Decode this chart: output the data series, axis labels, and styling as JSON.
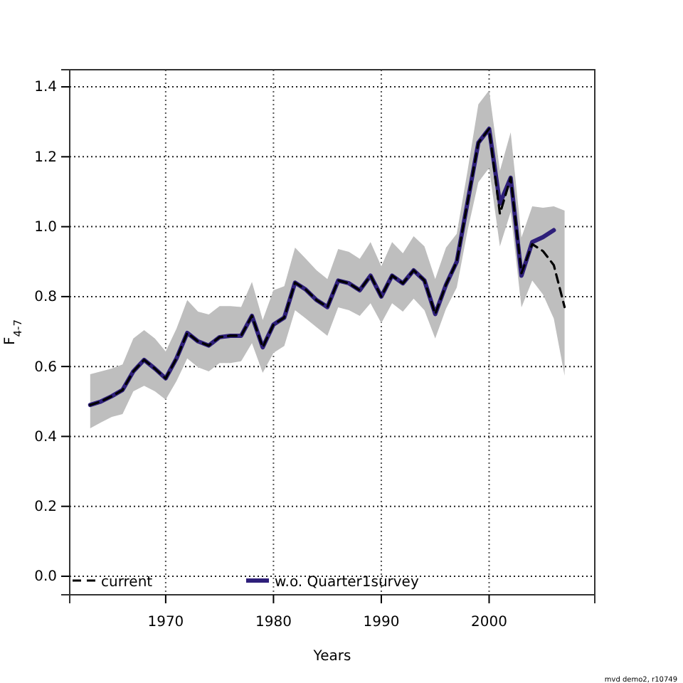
{
  "chart_data": {
    "type": "line",
    "xlabel": "Years",
    "ylabel": "F$_{4-7}$",
    "xlim": [
      1961.1,
      2009.8
    ],
    "ylim": [
      -0.053,
      1.449
    ],
    "xticks": [
      1970,
      1980,
      1990,
      2000
    ],
    "yticks": [
      {
        "value": 0,
        "label": "0.0"
      },
      {
        "value": 0.2,
        "label": "0.2"
      },
      {
        "value": 0.4,
        "label": "0.4"
      },
      {
        "value": 0.6,
        "label": "0.6"
      },
      {
        "value": 0.8,
        "label": "0.8"
      },
      {
        "value": 1.0,
        "label": "1.0"
      },
      {
        "value": 1.2,
        "label": "1.2"
      },
      {
        "value": 1.4,
        "label": "1.4"
      }
    ],
    "grid": true,
    "legend": "bottom",
    "series": [
      {
        "name": "current",
        "color": "#000000",
        "line_style": "dashed",
        "x": [
          1963,
          1964,
          1965,
          1966,
          1967,
          1968,
          1969,
          1970,
          1971,
          1972,
          1973,
          1974,
          1975,
          1976,
          1977,
          1978,
          1979,
          1980,
          1981,
          1982,
          1983,
          1984,
          1985,
          1986,
          1987,
          1988,
          1989,
          1990,
          1991,
          1992,
          1993,
          1994,
          1995,
          1996,
          1997,
          1998,
          1999,
          2000,
          2001,
          2002,
          2003,
          2004,
          2005,
          2006,
          2007
        ],
        "values": [
          0.49,
          0.5,
          0.515,
          0.533,
          0.586,
          0.619,
          0.594,
          0.566,
          0.623,
          0.696,
          0.672,
          0.66,
          0.684,
          0.688,
          0.688,
          0.745,
          0.655,
          0.72,
          0.74,
          0.84,
          0.82,
          0.79,
          0.77,
          0.846,
          0.838,
          0.818,
          0.86,
          0.8,
          0.86,
          0.838,
          0.875,
          0.846,
          0.75,
          0.834,
          0.9,
          1.07,
          1.24,
          1.28,
          1.037,
          1.14,
          0.867,
          0.95,
          0.93,
          0.89,
          0.77
        ],
        "lower": [
          0.423,
          0.44,
          0.456,
          0.464,
          0.529,
          0.545,
          0.529,
          0.505,
          0.558,
          0.623,
          0.598,
          0.586,
          0.61,
          0.61,
          0.615,
          0.667,
          0.582,
          0.639,
          0.659,
          0.761,
          0.737,
          0.712,
          0.688,
          0.769,
          0.761,
          0.745,
          0.781,
          0.724,
          0.781,
          0.757,
          0.794,
          0.761,
          0.68,
          0.765,
          0.826,
          0.989,
          1.127,
          1.168,
          0.944,
          1.042,
          0.769,
          0.846,
          0.806,
          0.737,
          0.574
        ],
        "upper": [
          0.578,
          0.586,
          0.594,
          0.606,
          0.68,
          0.704,
          0.68,
          0.643,
          0.708,
          0.79,
          0.757,
          0.749,
          0.773,
          0.773,
          0.77,
          0.842,
          0.733,
          0.818,
          0.83,
          0.94,
          0.908,
          0.875,
          0.85,
          0.936,
          0.928,
          0.908,
          0.956,
          0.887,
          0.956,
          0.924,
          0.973,
          0.944,
          0.85,
          0.94,
          0.98,
          1.16,
          1.35,
          1.39,
          1.16,
          1.27,
          0.969,
          1.058,
          1.054,
          1.058,
          1.046
        ]
      },
      {
        "name": "w.o. Quarter1survey",
        "color": "#2e1f7a",
        "line_style": "solid",
        "x": [
          1963,
          1964,
          1965,
          1966,
          1967,
          1968,
          1969,
          1970,
          1971,
          1972,
          1973,
          1974,
          1975,
          1976,
          1977,
          1978,
          1979,
          1980,
          1981,
          1982,
          1983,
          1984,
          1985,
          1986,
          1987,
          1988,
          1989,
          1990,
          1991,
          1992,
          1993,
          1994,
          1995,
          1996,
          1997,
          1998,
          1999,
          2000,
          2001,
          2002,
          2003,
          2004,
          2005,
          2006
        ],
        "values": [
          0.49,
          0.5,
          0.515,
          0.533,
          0.586,
          0.619,
          0.594,
          0.566,
          0.623,
          0.696,
          0.672,
          0.66,
          0.684,
          0.688,
          0.688,
          0.745,
          0.655,
          0.72,
          0.74,
          0.84,
          0.82,
          0.79,
          0.77,
          0.846,
          0.838,
          0.818,
          0.86,
          0.8,
          0.86,
          0.838,
          0.875,
          0.846,
          0.75,
          0.834,
          0.9,
          1.07,
          1.24,
          1.28,
          1.066,
          1.14,
          0.86,
          0.956,
          0.97,
          0.99
        ]
      }
    ],
    "annotations": [
      "mvd demo2, r10749"
    ]
  }
}
